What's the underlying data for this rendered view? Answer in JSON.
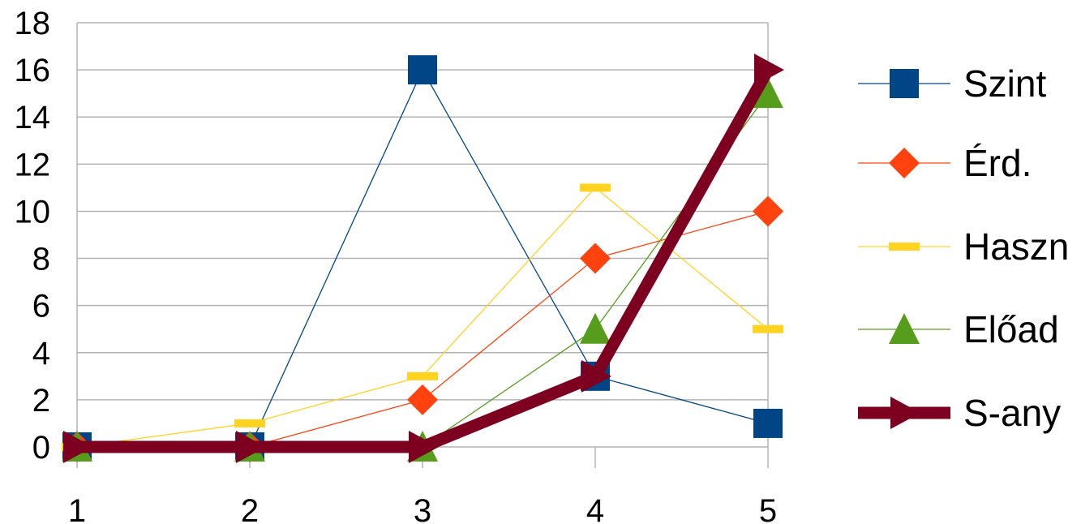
{
  "chart_data": {
    "type": "line",
    "title": "",
    "xlabel": "",
    "ylabel": "",
    "x": [
      1,
      2,
      3,
      4,
      5
    ],
    "x_tick_labels": [
      "1",
      "2",
      "3",
      "4",
      "5"
    ],
    "ylim": [
      0,
      18
    ],
    "y_ticks": [
      0,
      2,
      4,
      6,
      8,
      10,
      12,
      14,
      16,
      18
    ],
    "y_tick_labels": [
      "0",
      "2",
      "4",
      "6",
      "8",
      "10",
      "12",
      "14",
      "16",
      "18"
    ],
    "grid": "horizontal",
    "legend_position": "right",
    "series": [
      {
        "name": "Szint",
        "values": [
          0,
          0,
          16,
          3,
          1
        ],
        "color": "#004586",
        "marker": "square",
        "line": "thin"
      },
      {
        "name": "Érd.",
        "values": [
          0,
          0,
          2,
          8,
          10
        ],
        "color": "#ff420e",
        "marker": "diamond",
        "line": "thin"
      },
      {
        "name": "Haszn",
        "values": [
          0,
          1,
          3,
          11,
          5
        ],
        "color": "#ffd320",
        "marker": "dash",
        "line": "thin"
      },
      {
        "name": "Előad",
        "values": [
          0,
          0,
          0,
          5,
          15
        ],
        "color": "#579d1c",
        "marker": "triangle",
        "line": "thin"
      },
      {
        "name": "S-any",
        "values": [
          0,
          0,
          0,
          3,
          16
        ],
        "color": "#7e0021",
        "marker": "arrow-right",
        "line": "thick"
      }
    ]
  }
}
